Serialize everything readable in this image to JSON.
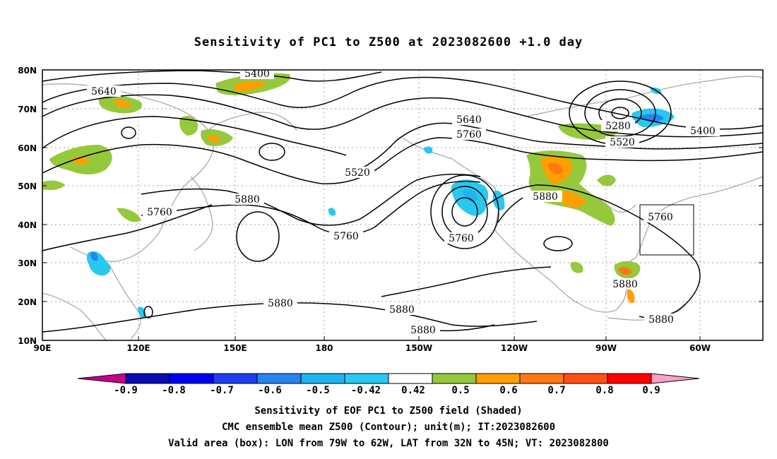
{
  "title": "Sensitivity of PC1 to Z500 at 2023082600 +1.0 day",
  "map": {
    "lat_labels": [
      "80N",
      "70N",
      "60N",
      "50N",
      "40N",
      "30N",
      "20N",
      "10N"
    ],
    "lon_labels": [
      "90E",
      "120E",
      "150E",
      "180",
      "150W",
      "120W",
      "90W",
      "60W"
    ],
    "contour_labels": [
      "5400",
      "5640",
      "5640",
      "5760",
      "5520",
      "5880",
      "5760",
      "5760",
      "5760",
      "5880",
      "5280",
      "5520",
      "5400",
      "5880",
      "5760",
      "5880",
      "5880",
      "5880",
      "5880",
      "5880"
    ],
    "valid_box": {
      "lon_west": "79W",
      "lon_east": "62W",
      "lat_south": "32N",
      "lat_north": "45N"
    }
  },
  "colorbar": {
    "labels": [
      "-0.9",
      "-0.8",
      "-0.7",
      "-0.6",
      "-0.5",
      "-0.42",
      "0.42",
      "0.5",
      "0.6",
      "0.7",
      "0.8",
      "0.9"
    ],
    "colors": [
      "#c8008c",
      "#0a0ab4",
      "#0000f0",
      "#1e3cf0",
      "#2882f0",
      "#1eb4f0",
      "#28c8f0",
      "#ffffff",
      "#96c83c",
      "#ffa000",
      "#ff7814",
      "#ff5014",
      "#ff0000",
      "#ffa0c8"
    ]
  },
  "captions": {
    "line1": "Sensitivity of EOF PC1 to Z500 field (Shaded)",
    "line2": "CMC ensemble mean Z500 (Contour); unit(m); IT:2023082600",
    "line3": "Valid area (box): LON from 79W to 62W, LAT from 32N to 45N; VT: 2023082800"
  }
}
